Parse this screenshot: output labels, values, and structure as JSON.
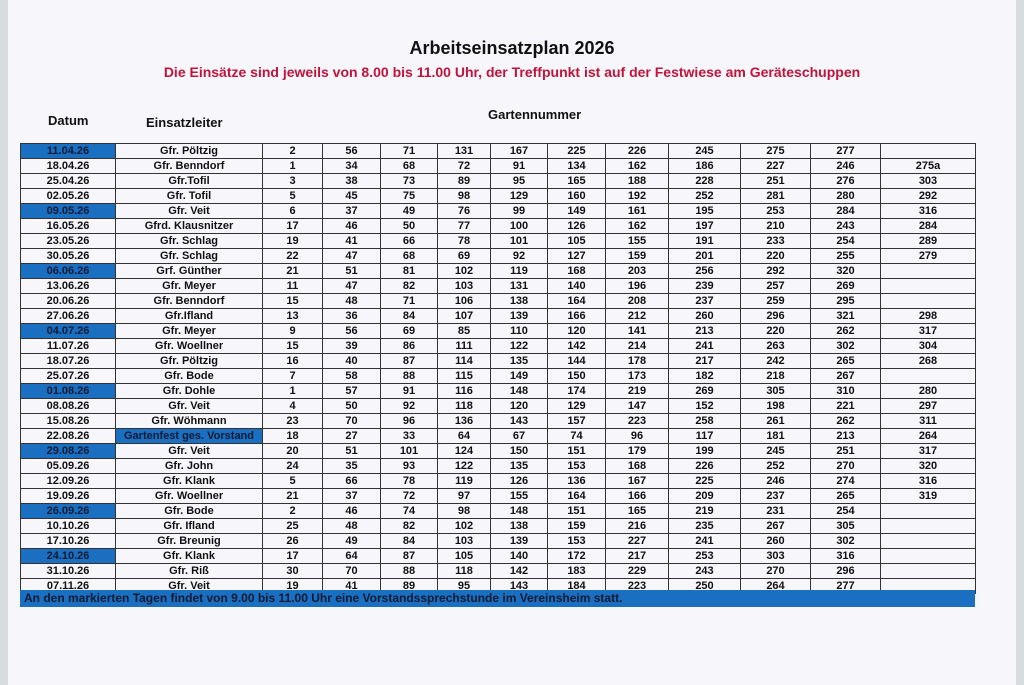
{
  "header": {
    "title": "Arbeitseinsatzplan 2026",
    "subtitle": "Die Einsätze sind jeweils von 8.00 bis 11.00 Uhr, der Treffpunkt ist auf der Festwiese am Geräteschuppen"
  },
  "table": {
    "columns": {
      "date": "Datum",
      "leader": "Einsatzleiter",
      "numbers": "Gartennummer"
    },
    "rows": [
      {
        "date": "11.04.26",
        "leader": "Gfr. Pöltzig",
        "numbers": [
          "2",
          "56",
          "71",
          "131",
          "167",
          "225",
          "226",
          "245",
          "275",
          "277",
          null
        ],
        "marked": true
      },
      {
        "date": "18.04.26",
        "leader": "Gfr. Benndorf",
        "numbers": [
          "1",
          "34",
          "68",
          "72",
          "91",
          "134",
          "162",
          "186",
          "227",
          "246",
          "275a"
        ]
      },
      {
        "date": "25.04.26",
        "leader": "Gfr.Tofil",
        "numbers": [
          "3",
          "38",
          "73",
          "89",
          "95",
          "165",
          "188",
          "228",
          "251",
          "276",
          "303"
        ]
      },
      {
        "date": "02.05.26",
        "leader": "Gfr. Tofil",
        "numbers": [
          "5",
          "45",
          "75",
          "98",
          "129",
          "160",
          "192",
          "252",
          "281",
          "280",
          "292"
        ]
      },
      {
        "date": "09.05.26",
        "leader": "Gfr. Veit",
        "numbers": [
          "6",
          "37",
          "49",
          "76",
          "99",
          "149",
          "161",
          "195",
          "253",
          "284",
          "316"
        ],
        "marked": true
      },
      {
        "date": "16.05.26",
        "leader": "Gfrd. Klausnitzer",
        "numbers": [
          "17",
          "46",
          "50",
          "77",
          "100",
          "126",
          "162",
          "197",
          "210",
          "243",
          "284"
        ]
      },
      {
        "date": "23.05.26",
        "leader": "Gfr. Schlag",
        "numbers": [
          "19",
          "41",
          "66",
          "78",
          "101",
          "105",
          "155",
          "191",
          "233",
          "254",
          "289"
        ]
      },
      {
        "date": "30.05.26",
        "leader": "Gfr. Schlag",
        "numbers": [
          "22",
          "47",
          "68",
          "69",
          "92",
          "127",
          "159",
          "201",
          "220",
          "255",
          "279"
        ]
      },
      {
        "date": "06.06.26",
        "leader": "Grf. Günther",
        "numbers": [
          "21",
          "51",
          "81",
          "102",
          "119",
          "168",
          "203",
          "256",
          "292",
          "320",
          null
        ],
        "marked": true
      },
      {
        "date": "13.06.26",
        "leader": "Gfr. Meyer",
        "numbers": [
          "11",
          "47",
          "82",
          "103",
          "131",
          "140",
          "196",
          "239",
          "257",
          "269",
          null
        ]
      },
      {
        "date": "20.06.26",
        "leader": "Gfr. Benndorf",
        "numbers": [
          "15",
          "48",
          "71",
          "106",
          "138",
          "164",
          "208",
          "237",
          "259",
          "295",
          null
        ]
      },
      {
        "date": "27.06.26",
        "leader": "Gfr.Ifland",
        "numbers": [
          "13",
          "36",
          "84",
          "107",
          "139",
          "166",
          "212",
          "260",
          "296",
          "321",
          "298"
        ]
      },
      {
        "date": "04.07.26",
        "leader": "Gfr. Meyer",
        "numbers": [
          "9",
          "56",
          "69",
          "85",
          "110",
          "120",
          "141",
          "213",
          "220",
          "262",
          "317"
        ],
        "marked": true
      },
      {
        "date": "11.07.26",
        "leader": "Gfr. Woellner",
        "numbers": [
          "15",
          "39",
          "86",
          "111",
          "122",
          "142",
          "214",
          "241",
          "263",
          "302",
          "304"
        ]
      },
      {
        "date": "18.07.26",
        "leader": "Gfr. Pöltzig",
        "numbers": [
          "16",
          "40",
          "87",
          "114",
          "135",
          "144",
          "178",
          "217",
          "242",
          "265",
          "268"
        ]
      },
      {
        "date": "25.07.26",
        "leader": "Gfr. Bode",
        "numbers": [
          "7",
          "58",
          "88",
          "115",
          "149",
          "150",
          "173",
          "182",
          "218",
          "267",
          null
        ]
      },
      {
        "date": "01.08.26",
        "leader": "Gfr. Dohle",
        "numbers": [
          "1",
          "57",
          "91",
          "116",
          "148",
          "174",
          "219",
          "269",
          "305",
          "310",
          "280"
        ],
        "marked": true
      },
      {
        "date": "08.08.26",
        "leader": "Gfr. Veit",
        "numbers": [
          "4",
          "50",
          "92",
          "118",
          "120",
          "129",
          "147",
          "152",
          "198",
          "221",
          "297"
        ]
      },
      {
        "date": "15.08.26",
        "leader": "Gfr. Wöhmann",
        "numbers": [
          "23",
          "70",
          "96",
          "136",
          "143",
          "157",
          "223",
          "258",
          "261",
          "262",
          "311"
        ]
      },
      {
        "date": "22.08.26",
        "leader": "Gartenfest ges. Vorstand",
        "numbers": [
          "18",
          "27",
          "33",
          "64",
          "67",
          "74",
          "96",
          "117",
          "181",
          "213",
          "264"
        ],
        "leader_marked": true
      },
      {
        "date": "29.08.26",
        "leader": "Gfr. Veit",
        "numbers": [
          "20",
          "51",
          "101",
          "124",
          "150",
          "151",
          "179",
          "199",
          "245",
          "251",
          "317"
        ],
        "marked": true
      },
      {
        "date": "05.09.26",
        "leader": "Gfr. John",
        "numbers": [
          "24",
          "35",
          "93",
          "122",
          "135",
          "153",
          "168",
          "226",
          "252",
          "270",
          "320"
        ]
      },
      {
        "date": "12.09.26",
        "leader": "Gfr. Klank",
        "numbers": [
          "5",
          "66",
          "78",
          "119",
          "126",
          "136",
          "167",
          "225",
          "246",
          "274",
          "316"
        ]
      },
      {
        "date": "19.09.26",
        "leader": "Gfr. Woellner",
        "numbers": [
          "21",
          "37",
          "72",
          "97",
          "155",
          "164",
          "166",
          "209",
          "237",
          "265",
          "319"
        ]
      },
      {
        "date": "26.09.26",
        "leader": "Gfr. Bode",
        "numbers": [
          "2",
          "46",
          "74",
          "98",
          "148",
          "151",
          "165",
          "219",
          "231",
          "254",
          null
        ],
        "marked": true
      },
      {
        "date": "10.10.26",
        "leader": "Gfr. Ifland",
        "numbers": [
          "25",
          "48",
          "82",
          "102",
          "138",
          "159",
          "216",
          "235",
          "267",
          "305",
          null
        ]
      },
      {
        "date": "17.10.26",
        "leader": "Gfr. Breunig",
        "numbers": [
          "26",
          "49",
          "84",
          "103",
          "139",
          "153",
          "227",
          "241",
          "260",
          "302",
          null
        ]
      },
      {
        "date": "24.10.26",
        "leader": "Gfr. Klank",
        "numbers": [
          "17",
          "64",
          "87",
          "105",
          "140",
          "172",
          "217",
          "253",
          "303",
          "316",
          null
        ],
        "marked": true
      },
      {
        "date": "31.10.26",
        "leader": "Gfr. Riß",
        "numbers": [
          "30",
          "70",
          "88",
          "118",
          "142",
          "183",
          "229",
          "243",
          "270",
          "296",
          null
        ]
      },
      {
        "date": "07.11.26",
        "leader": "Gfr. Veit",
        "numbers": [
          "19",
          "41",
          "89",
          "95",
          "143",
          "184",
          "223",
          "250",
          "264",
          "277",
          null
        ]
      }
    ]
  },
  "footer": "An den markierten Tagen findet von 9.00 bis 11.00 Uhr eine Vorstandssprechstunde im Vereinsheim statt."
}
